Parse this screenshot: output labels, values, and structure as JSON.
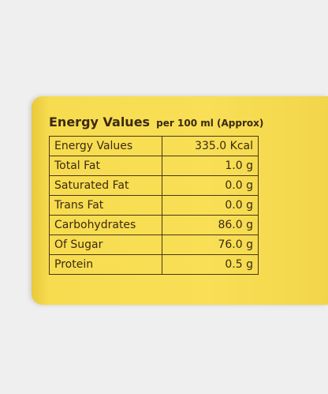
{
  "title": {
    "main": "Energy Values",
    "sub": "per 100 ml (Approx)"
  },
  "table": {
    "rows": [
      [
        "Energy Values",
        "335.0 Kcal"
      ],
      [
        "Total Fat",
        "1.0 g"
      ],
      [
        "Saturated Fat",
        "0.0 g"
      ],
      [
        "Trans Fat",
        "0.0 g"
      ],
      [
        "Carbohydrates",
        "86.0 g"
      ],
      [
        "Of Sugar",
        "76.0 g"
      ],
      [
        "Protein",
        "0.5 g"
      ]
    ]
  }
}
